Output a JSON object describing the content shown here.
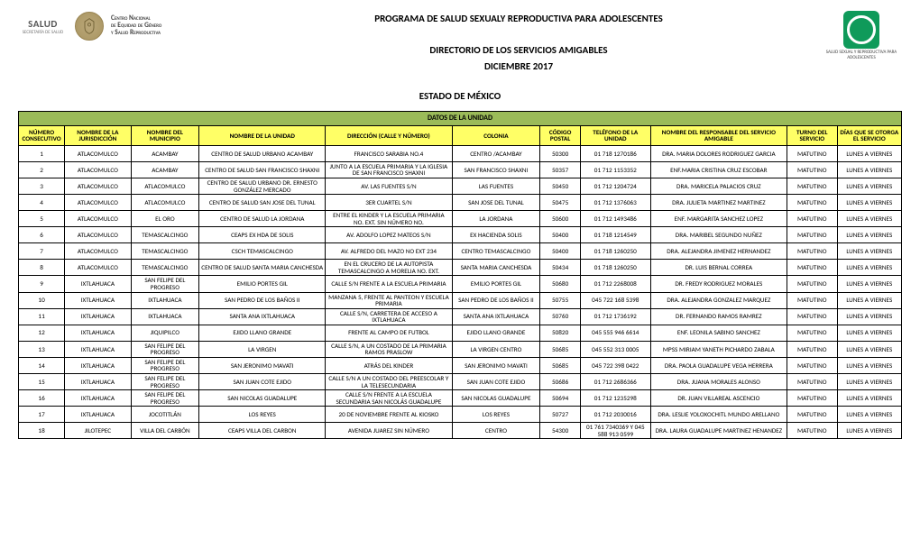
{
  "header": {
    "salud_top": "SALUD",
    "salud_bot": "SECRETARÍA DE SALUD",
    "cn_line1": "Centro Nacional",
    "cn_line2": "de Equidad de Género",
    "cn_line3": "y Salud Reproductiva",
    "title1": "PROGRAMA DE SALUD SEXUALY REPRODUCTIVA PARA ADOLESCENTES",
    "title2": "DIRECTORIO DE LOS SERVICIOS AMIGABLES",
    "title3": "DICIEMBRE 2017",
    "ssr_txt": "SALUD SEXUAL Y REPRODUCTIVA PARA ADOLESCENTES"
  },
  "estado": "ESTADO DE MÉXICO",
  "table": {
    "section_header": "DATOS DE LA UNIDAD",
    "columns": [
      "NÚMERO CONSECUTIVO",
      "NOMBRE DE LA JURISDICCIÓN",
      "NOMBRE DEL MUNICIPIO",
      "NOMBRE DE LA  UNIDAD",
      "DIRECCIÓN (CALLE Y NÚMERO)",
      "COLONIA",
      "CÓDIGO POSTAL",
      "TELÉFONO DE LA UNIDAD",
      "NOMBRE DEL RESPONSABLE DEL SERVICIO AMIGABLE",
      "TURNO DEL SERVICIO",
      "DÍAS QUE SE OTORGA EL SERVICIO"
    ],
    "rows": [
      [
        "1",
        "ATLACOMULCO",
        "ACAMBAY",
        "CENTRO DE SALUD URBANO ACAMBAY",
        "FRANCISCO SARABIA NO.4",
        "CENTRO /ACAMBAY",
        "50300",
        "01 718 1270186",
        "DRA. MARIA DOLORES RODRIGUEZ GARCIA",
        "MATUTINO",
        "LUNES A VIERNES"
      ],
      [
        "2",
        "ATLACOMULCO",
        "ACAMBAY",
        "CENTRO DE SALUD SAN FRANCISCO SHAXNI",
        "JUNTO A LA ESCUELA PRIMARIA Y LA IGLESIA DE SAN FRANCISCO SHAXNI",
        "SAN FRANCISCO SHAXNI",
        "50357",
        "01 712 1153352",
        "ENF.MARIA CRISTINA CRUZ ESCOBAR",
        "MATUTINO",
        "LUNES A VIERNES"
      ],
      [
        "3",
        "ATLACOMULCO",
        "ATLACOMULCO",
        "CENTRO DE SALUD URBANO DR. ERNESTO GONZÁLEZ MERCADO",
        "AV. LAS FUENTES S/N",
        "LAS FUENTES",
        "50450",
        "01 712 1204724",
        "DRA. MARICELA PALACIOS CRUZ",
        "MATUTINO",
        "LUNES A VIERNES"
      ],
      [
        "4",
        "ATLACOMULCO",
        "ATLACOMULCO",
        "CENTRO DE SALUD SAN JOSE DEL TUNAL",
        "3ER CUARTEL S/N",
        "SAN JOSE DEL TUNAL",
        "50475",
        "01 712 1376063",
        "DRA. JULIETA MARTINEZ MARTINEZ",
        "MATUTINO",
        "LUNES A VIERNES"
      ],
      [
        "5",
        "ATLACOMULCO",
        "EL ORO",
        "CENTRO DE SALUD LA JORDANA",
        "ENTRE EL KINDER Y LA ESCUELA PRIMARIA NO. EXT. SIN NÚMERO NO.",
        "LA JORDANA",
        "50600",
        "01 712 1493486",
        "ENF. MARGARITA SANCHEZ LOPEZ",
        "MATUTINO",
        "LUNES A VIERNES"
      ],
      [
        "6",
        "ATLACOMULCO",
        "TEMASCALCINGO",
        "CEAPS EX HDA DE SOLIS",
        "AV. ADOLFO LOPEZ MATEOS S/N",
        "EX HACIENDA SOLIS",
        "50400",
        "01 718 1214549",
        "DRA. MARIBEL SEGUNDO NUÑEZ",
        "MATUTINO",
        "LUNES A VIERNES"
      ],
      [
        "7",
        "ATLACOMULCO",
        "TEMASCALCINGO",
        "CSCH TEMASCALCINGO",
        "AV. ALFREDO DEL MAZO NO EXT 234",
        "CENTRO TEMASCALCINGO",
        "50400",
        "01 718 1260250",
        "DRA. ALEJANDRA JIMENEZ HERNANDEZ",
        "MATUTINO",
        "LUNES A VIERNES"
      ],
      [
        "8",
        "ATLACOMULCO",
        "TEMASCALCINGO",
        "CENTRO DE SALUD SANTA MARIA CANCHESDA",
        "EN EL CRUCERO DE LA AUTOPISTA TEMASCALCINGO A MORELIA NO. EXT.",
        "SANTA MARIA CANCHESDA",
        "50434",
        "01 718 1260250",
        "DR. LUIS BERNAL CORREA",
        "MATUTINO",
        "LUNES A VIERNES"
      ],
      [
        "9",
        "IXTLAHUACA",
        "SAN FELIPE DEL PROGRESO",
        "EMILIO PORTES GIL",
        "CALLE S/N FRENTE A LA ESCUELA PRIMARIA",
        "EMILIO PORTES GIL",
        "50680",
        "01 712 2268008",
        "DR. FREDY RODRIGUEZ MORALES",
        "MATUTINO",
        "LUNES A VIERNES"
      ],
      [
        "10",
        "IXTLAHUACA",
        "IXTLAHUACA",
        "SAN PEDRO DE LOS BAÑOS II",
        "MANZANA 5, FRENTE AL PANTEON Y ESCUELA PRIMARIA",
        "SAN PEDRO DE LOS BAÑOS II",
        "50755",
        "045 722 168 5398",
        "DRA. ALEJANDRA GONZALEZ MARQUEZ",
        "MATUTINO",
        "LUNES A VIERNES"
      ],
      [
        "11",
        "IXTLAHUACA",
        "IXTLAHUACA",
        "SANTA ANA IXTLAHUACA",
        "CALLE S/N, CARRETERA DE ACCESO A IXTLAHUACA",
        "SANTA ANA IXTLAHUACA",
        "50760",
        "01 712 1736192",
        "DR. FERNANDO RAMOS RAMREZ",
        "MATUTINO",
        "LUNES A VIERNES"
      ],
      [
        "12",
        "IXTLAHUACA",
        "JIQUIPILCO",
        "EJIDO LLANO GRANDE",
        "FRENTE AL CAMPO DE FUTBOL",
        "EJIDO LLANO GRANDE",
        "50820",
        "045 555 946 6614",
        "ENF. LEONILA SABINO SANCHEZ",
        "MATUTINO",
        "LUNES A VIERNES"
      ],
      [
        "13",
        "IXTLAHUACA",
        "SAN FELIPE DEL PROGRESO",
        "LA VIRGEN",
        "CALLE S/N, A UN COSTADO DE LA PRIMARIA RAMOS PRASLOW",
        "LA VIRGEN CENTRO",
        "50685",
        "045 552 313 0005",
        "MPSS MIRIAM YANETH PICHARDO ZABALA",
        "MATUTINO",
        "LUNES A VIERNES"
      ],
      [
        "14",
        "IXTLAHUACA",
        "SAN FELIPE DEL PROGRESO",
        "SAN JERONIMO MAVATI",
        "ATRÁS DEL KINDER",
        "SAN JERONIMO MAVATI",
        "50685",
        "045 722 398 0422",
        "DRA. PAOLA GUADALUPE VEGA HERRERA",
        "MATUTINO",
        "LUNES A VIERNES"
      ],
      [
        "15",
        "IXTLAHUACA",
        "SAN FELIPE DEL PROGRESO",
        "SAN JUAN COTE EJIDO",
        "CALLE S/N A UN COSTADO DEL PREESCOLAR Y LA TELESECUNDARIA",
        "SAN JUAN COTE EJIDO",
        "50686",
        "01 712 2686366",
        "DRA. JUANA MORALES ALONSO",
        "MATUTINO",
        "LUNES A VIERNES"
      ],
      [
        "16",
        "IXTLAHUACA",
        "SAN FELIPE DEL PROGRESO",
        "SAN NICOLAS GUADALUPE",
        "CALLE S/N FRENTE A LA ESCUELA SECUNDARIA SAN NICOLÁS GUADALUPE",
        "SAN NICOLAS GUADALUPE",
        "50694",
        "01 712 1235298",
        "DR. JUAN VILLAREAL ASCENCIO",
        "MATUTINO",
        "LUNES A VIERNES"
      ],
      [
        "17",
        "IXTLAHUACA",
        "JOCOTITLÁN",
        "LOS REYES",
        "20 DE NOVIEMBRE FRENTE AL KIOSKO",
        "LOS REYES",
        "50727",
        "01 712 2030016",
        "DRA. LESLIE YOLOXOCHITL MUNDO ARELLANO",
        "MATUTINO",
        "LUNES A VIERNES"
      ],
      [
        "18",
        "JILOTEPEC",
        "VILLA DEL CARBÓN",
        "CEAPS VILLA DEL CARBON",
        "AVENIDA JUAREZ SIN NÚMERO",
        "CENTRO",
        "54300",
        "01 761 7340369 Y 045 588 913 0599",
        "DRA. LAURA GUADALUPE MARTINEZ HENANDEZ",
        "MATUTINO",
        "LUNES A VIERNES"
      ]
    ]
  },
  "styling": {
    "section_header_bg": "#9bbb59",
    "column_header_bg": "#ffff66",
    "border_color": "#000000",
    "page_bg": "#ffffff",
    "text_color": "#000000",
    "title_fontsize": 11,
    "cell_fontsize": 7.2
  }
}
